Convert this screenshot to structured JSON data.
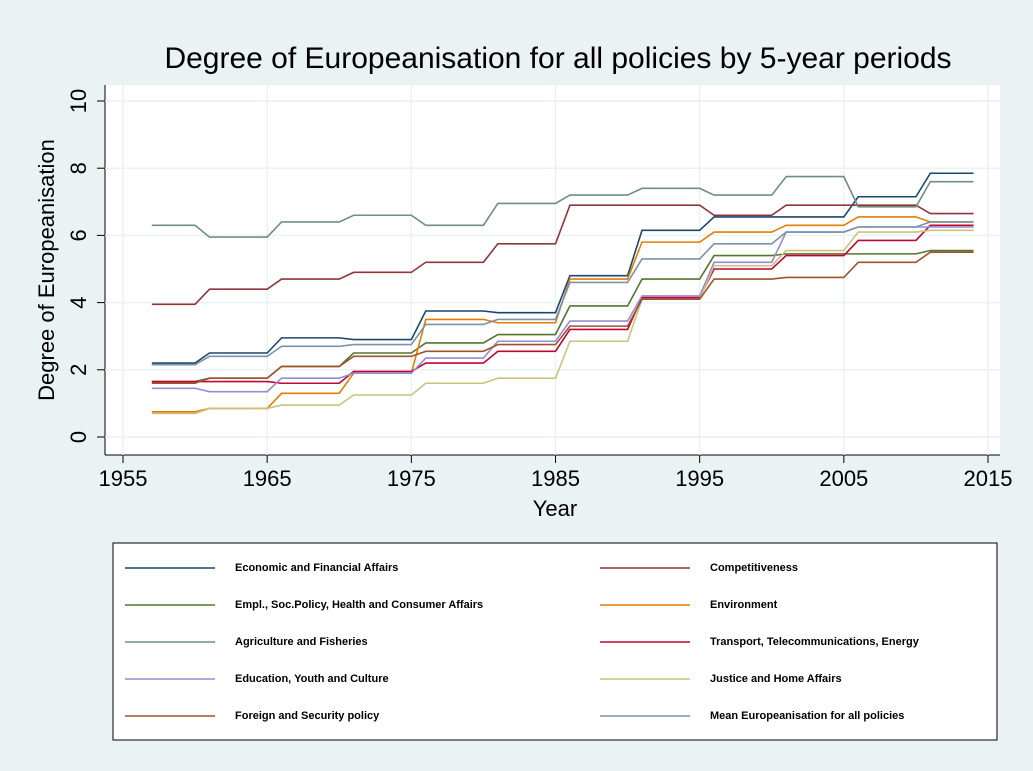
{
  "chart_data": {
    "type": "line",
    "title": "Degree of Europeanisation for all policies by 5-year periods",
    "x_label": "Year",
    "y_label": "Degree of Europeanisation",
    "xlim": [
      1955,
      2015
    ],
    "ylim": [
      0,
      10
    ],
    "xticks": [
      1955,
      1965,
      1975,
      1985,
      1995,
      2005,
      2015
    ],
    "yticks": [
      0,
      2,
      4,
      6,
      8,
      10
    ],
    "grid": true,
    "x": [
      1957,
      1960,
      1961,
      1965,
      1966,
      1970,
      1971,
      1975,
      1976,
      1980,
      1981,
      1985,
      1986,
      1990,
      1991,
      1995,
      1996,
      2000,
      2001,
      2005,
      2006,
      2010,
      2011,
      2014
    ],
    "series": [
      {
        "name": "Economic and Financial Affairs",
        "color": "#1a476f",
        "values": [
          2.2,
          2.2,
          2.5,
          2.5,
          2.95,
          2.95,
          2.9,
          2.9,
          3.75,
          3.75,
          3.7,
          3.7,
          4.8,
          4.8,
          6.15,
          6.15,
          6.55,
          6.55,
          6.55,
          6.55,
          7.15,
          7.15,
          7.85,
          7.85
        ]
      },
      {
        "name": "Competitiveness",
        "color": "#90353b",
        "values": [
          3.95,
          3.95,
          4.4,
          4.4,
          4.7,
          4.7,
          4.9,
          4.9,
          5.2,
          5.2,
          5.75,
          5.75,
          6.9,
          6.9,
          6.9,
          6.9,
          6.6,
          6.6,
          6.9,
          6.9,
          6.9,
          6.9,
          6.65,
          6.65
        ]
      },
      {
        "name": "Empl., Soc.Policy, Health and Consumer Affairs",
        "color": "#55752f",
        "values": [
          1.65,
          1.65,
          1.75,
          1.75,
          2.1,
          2.1,
          2.5,
          2.5,
          2.8,
          2.8,
          3.05,
          3.05,
          3.9,
          3.9,
          4.7,
          4.7,
          5.4,
          5.4,
          5.45,
          5.45,
          5.45,
          5.45,
          5.55,
          5.55
        ]
      },
      {
        "name": "Environment",
        "color": "#e37e00",
        "values": [
          0.75,
          0.75,
          0.85,
          0.85,
          1.3,
          1.3,
          1.9,
          1.9,
          3.5,
          3.5,
          3.4,
          3.4,
          4.7,
          4.7,
          5.8,
          5.8,
          6.1,
          6.1,
          6.3,
          6.3,
          6.55,
          6.55,
          6.4,
          6.4
        ]
      },
      {
        "name": "Agriculture and Fisheries",
        "color": "#6e8e84",
        "values": [
          6.3,
          6.3,
          5.95,
          5.95,
          6.4,
          6.4,
          6.6,
          6.6,
          6.3,
          6.3,
          6.95,
          6.95,
          7.2,
          7.2,
          7.4,
          7.4,
          7.2,
          7.2,
          7.75,
          7.75,
          6.85,
          6.85,
          7.6,
          7.6
        ]
      },
      {
        "name": "Transport, Telecommunications, Energy",
        "color": "#c10534",
        "values": [
          1.65,
          1.65,
          1.65,
          1.65,
          1.6,
          1.6,
          1.95,
          1.95,
          2.2,
          2.2,
          2.55,
          2.55,
          3.2,
          3.2,
          4.15,
          4.15,
          5.0,
          5.0,
          5.4,
          5.4,
          5.85,
          5.85,
          6.3,
          6.3
        ]
      },
      {
        "name": "Education, Youth and Culture",
        "color": "#938dd2",
        "values": [
          1.45,
          1.45,
          1.35,
          1.35,
          1.75,
          1.75,
          1.9,
          1.9,
          2.35,
          2.35,
          2.85,
          2.85,
          3.45,
          3.45,
          4.2,
          4.2,
          5.2,
          5.2,
          6.1,
          6.1,
          6.25,
          6.25,
          6.25,
          6.25
        ]
      },
      {
        "name": "Justice and Home Affairs",
        "color": "#cac27e",
        "values": [
          0.7,
          0.7,
          0.85,
          0.85,
          0.95,
          0.95,
          1.25,
          1.25,
          1.6,
          1.6,
          1.75,
          1.75,
          2.85,
          2.85,
          4.1,
          4.1,
          5.1,
          5.1,
          5.55,
          5.55,
          6.1,
          6.1,
          6.15,
          6.15
        ]
      },
      {
        "name": "Foreign and Security policy",
        "color": "#a0522d",
        "values": [
          1.6,
          1.6,
          1.75,
          1.75,
          2.1,
          2.1,
          2.4,
          2.4,
          2.55,
          2.55,
          2.75,
          2.75,
          3.3,
          3.3,
          4.1,
          4.1,
          4.7,
          4.7,
          4.75,
          4.75,
          5.2,
          5.2,
          5.5,
          5.5
        ]
      },
      {
        "name": "Mean Europeanisation for all policies",
        "color": "#7b92a8",
        "values": [
          2.15,
          2.15,
          2.4,
          2.4,
          2.7,
          2.7,
          2.75,
          2.75,
          3.35,
          3.35,
          3.5,
          3.5,
          4.6,
          4.6,
          5.3,
          5.3,
          5.75,
          5.75,
          6.1,
          6.1,
          6.25,
          6.25,
          6.4,
          6.4
        ]
      }
    ]
  }
}
